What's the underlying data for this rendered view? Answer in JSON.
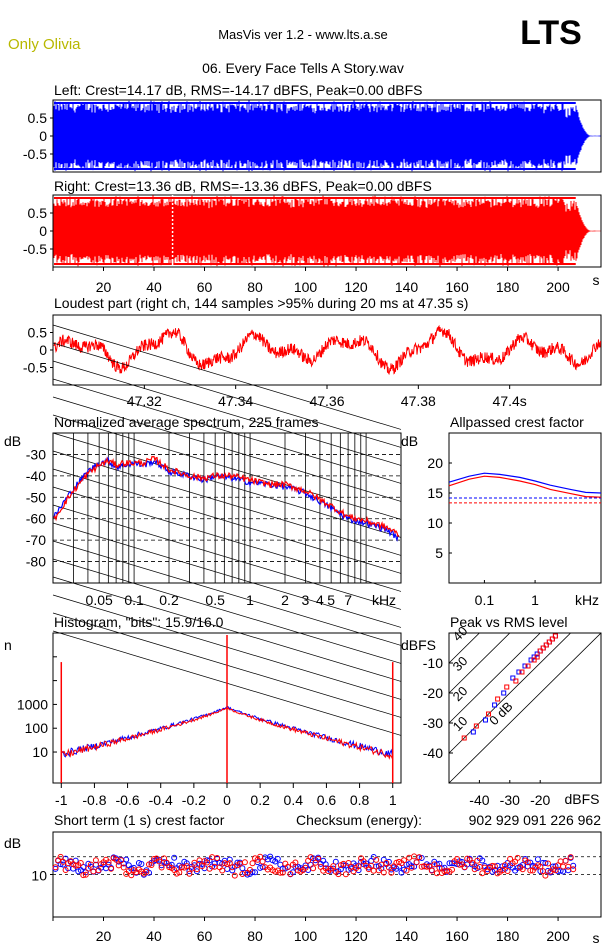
{
  "header": {
    "album": "Only Olivia",
    "app": "MasVis ver 1.2 - www.lts.a.se",
    "logo": "LTS",
    "track": "06. Every Face Tells A Story.wav"
  },
  "colors": {
    "left": "#0000ff",
    "right": "#ff0000",
    "album": "#c8c800",
    "grid": "#000000"
  },
  "chart_data": [
    {
      "id": "left",
      "type": "waveform",
      "title": "Left: Crest=14.17 dB, RMS=-14.17 dBFS, Peak=0.00 dBFS",
      "ytick_labels": [
        "0.5",
        "0",
        "-0.5"
      ],
      "yticks": [
        0.5,
        0,
        -0.5
      ],
      "ylim": [
        -1,
        1
      ],
      "xlim": [
        0,
        217
      ],
      "end_time_s": 207,
      "series_color": "#0000ff"
    },
    {
      "id": "right",
      "type": "waveform",
      "title": "Right: Crest=13.36 dB, RMS=-13.36 dBFS, Peak=0.00 dBFS",
      "ytick_labels": [
        "0.5",
        "0",
        "-0.5"
      ],
      "yticks": [
        0.5,
        0,
        -0.5
      ],
      "ylim": [
        -1,
        1
      ],
      "xlim": [
        0,
        217
      ],
      "marker_s": 47.35,
      "xticks": [
        20,
        40,
        60,
        80,
        100,
        120,
        140,
        160,
        180,
        200
      ],
      "xtick_labels": [
        "20",
        "40",
        "60",
        "80",
        "100",
        "120",
        "140",
        "160",
        "180",
        "200"
      ],
      "xunit": "s",
      "series_color": "#ff0000"
    },
    {
      "id": "loudest",
      "type": "line",
      "title": "Loudest part (right ch, 144 samples >95% during 20 ms at 47.35 s)",
      "ytick_labels": [
        "0.5",
        "0",
        "-0.5"
      ],
      "yticks": [
        0.5,
        0,
        -0.5
      ],
      "ylim": [
        -1,
        1
      ],
      "xlim": [
        47.3,
        47.42
      ],
      "xticks": [
        47.32,
        47.34,
        47.36,
        47.38,
        47.4
      ],
      "xtick_labels": [
        "47.32",
        "47.34",
        "47.36",
        "47.38",
        "47.4s"
      ],
      "series_color": "#ff0000"
    },
    {
      "id": "spectrum",
      "type": "line",
      "title": "Normalized average spectrum, 225 frames",
      "ylabel": "dB",
      "ytick_labels": [
        "-30",
        "-40",
        "-50",
        "-60",
        "-70",
        "-80"
      ],
      "yticks": [
        -30,
        -40,
        -50,
        -60,
        -70,
        -80
      ],
      "ylim": [
        -90,
        -20
      ],
      "xlim_khz": [
        0.02,
        20
      ],
      "xticks": [
        0.05,
        0.1,
        0.2,
        0.5,
        1,
        2,
        3,
        4,
        5,
        7
      ],
      "xtick_labels": [
        "0.05",
        "0.1",
        "0.2",
        "0.5",
        "1",
        "2",
        "3",
        "4",
        "5",
        "7"
      ],
      "xunit": "kHz",
      "series": [
        {
          "name": "left",
          "color": "#0000ff",
          "x": [
            0.02,
            0.025,
            0.03,
            0.04,
            0.05,
            0.06,
            0.07,
            0.08,
            0.1,
            0.12,
            0.15,
            0.2,
            0.3,
            0.4,
            0.5,
            0.7,
            1,
            1.5,
            2,
            3,
            4,
            5,
            7,
            10,
            15,
            20
          ],
          "y": [
            -60,
            -52,
            -46,
            -38,
            -34,
            -33,
            -36,
            -35,
            -34,
            -35,
            -33,
            -38,
            -40,
            -42,
            -40,
            -41,
            -43,
            -44,
            -45,
            -48,
            -52,
            -55,
            -60,
            -62,
            -65,
            -70
          ]
        },
        {
          "name": "right",
          "color": "#ff0000",
          "x": [
            0.02,
            0.025,
            0.03,
            0.04,
            0.05,
            0.06,
            0.07,
            0.08,
            0.1,
            0.12,
            0.15,
            0.2,
            0.3,
            0.4,
            0.5,
            0.7,
            1,
            1.5,
            2,
            3,
            4,
            5,
            7,
            10,
            15,
            20
          ],
          "y": [
            -61,
            -53,
            -47,
            -39,
            -35,
            -33,
            -35,
            -34,
            -34,
            -34,
            -32,
            -37,
            -40,
            -41,
            -40,
            -40,
            -42,
            -44,
            -44,
            -47,
            -51,
            -54,
            -59,
            -61,
            -64,
            -68
          ]
        }
      ]
    },
    {
      "id": "crest",
      "type": "line",
      "title": "Allpassed crest factor",
      "ylabel": "dB",
      "ytick_labels": [
        "20",
        "15",
        "10",
        "5"
      ],
      "yticks": [
        20,
        15,
        10,
        5
      ],
      "ylim": [
        0,
        25
      ],
      "xlim_khz": [
        0.02,
        20
      ],
      "xticks": [
        0.1,
        1
      ],
      "xtick_labels": [
        "0.1",
        "1"
      ],
      "xunit": "kHz",
      "ref_left_db": 14.17,
      "ref_right_db": 13.36,
      "series": [
        {
          "name": "left",
          "color": "#0000ff",
          "x": [
            0.02,
            0.05,
            0.1,
            0.2,
            0.5,
            1,
            2,
            5,
            10,
            20
          ],
          "y": [
            16.8,
            17.8,
            18.3,
            18.1,
            17.6,
            17.0,
            16.3,
            15.6,
            15.1,
            15.0
          ]
        },
        {
          "name": "right",
          "color": "#ff0000",
          "x": [
            0.02,
            0.05,
            0.1,
            0.2,
            0.5,
            1,
            2,
            5,
            10,
            20
          ],
          "y": [
            16.2,
            17.3,
            17.8,
            17.6,
            17.0,
            16.4,
            15.6,
            14.9,
            14.4,
            14.3
          ]
        }
      ]
    },
    {
      "id": "histogram",
      "type": "line",
      "title": "Histogram, \"bits\": 15.9/16.0",
      "ylabel": "n",
      "ytick_labels": [
        "1000",
        "100",
        "10"
      ],
      "yticks": [
        1000,
        100,
        10
      ],
      "ylim_log": [
        0.5,
        1000000
      ],
      "xlim": [
        -1.05,
        1.05
      ],
      "xticks": [
        -1,
        -0.8,
        -0.6,
        -0.4,
        -0.2,
        0,
        0.2,
        0.4,
        0.6,
        0.8,
        1
      ],
      "xtick_labels": [
        "-1",
        "-0.8",
        "-0.6",
        "-0.4",
        "-0.2",
        "0",
        "0.2",
        "0.4",
        "0.6",
        "0.8",
        "1"
      ],
      "center_count": 800,
      "edge_count": 8,
      "clip_count": 60000,
      "series_colors": [
        "#0000ff",
        "#ff0000"
      ]
    },
    {
      "id": "peakrms",
      "type": "scatter",
      "title": "Peak vs RMS level",
      "ylabel": "dBFS",
      "ytick_labels": [
        "-10",
        "-20",
        "-30",
        "-40"
      ],
      "yticks": [
        -10,
        -20,
        -30,
        -40
      ],
      "ylim": [
        -50,
        0
      ],
      "xlim": [
        -50,
        0
      ],
      "xticks": [
        -40,
        -30,
        -20
      ],
      "xtick_labels": [
        "-40",
        "-30",
        "-20"
      ],
      "xunit": "dBFS",
      "diag_labels": [
        "40",
        "30",
        "20",
        "10",
        "0 dB"
      ],
      "diag_offsets": [
        40,
        30,
        20,
        10,
        0
      ],
      "series": [
        {
          "name": "left",
          "color": "#0000ff",
          "x": [
            -42,
            -38,
            -35,
            -32,
            -29,
            -27,
            -25,
            -23,
            -22,
            -21,
            -20,
            -19,
            -18,
            -17,
            -16,
            -15
          ],
          "y": [
            -33,
            -29,
            -24,
            -20,
            -15,
            -13,
            -11,
            -9,
            -8,
            -7,
            -6,
            -5,
            -4,
            -3,
            -2,
            -1
          ]
        },
        {
          "name": "right",
          "color": "#ff0000",
          "x": [
            -45,
            -41,
            -37,
            -34,
            -31,
            -28,
            -26,
            -24,
            -22,
            -21,
            -20,
            -19,
            -18,
            -17,
            -16,
            -15
          ],
          "y": [
            -35,
            -31,
            -27,
            -22,
            -18,
            -16,
            -13,
            -11,
            -9,
            -8,
            -6,
            -5,
            -4,
            -3,
            -2,
            -1
          ]
        }
      ]
    },
    {
      "id": "shortterm",
      "type": "scatter",
      "title": "Short term (1 s) crest factor",
      "ylabel": "dB",
      "ytick_labels": [
        "10"
      ],
      "yticks": [
        10
      ],
      "ylim": [
        0,
        20
      ],
      "xlim": [
        0,
        217
      ],
      "xticks": [
        20,
        40,
        60,
        80,
        100,
        120,
        140,
        160,
        180,
        200
      ],
      "xtick_labels": [
        "20",
        "40",
        "60",
        "80",
        "100",
        "120",
        "140",
        "160",
        "180",
        "200"
      ],
      "xunit": "s",
      "ref_left_db": 14.17,
      "ref_right_db": 13.36,
      "mean_db": 12,
      "series_colors": [
        "#0000ff",
        "#ff0000"
      ]
    }
  ],
  "checksum": {
    "label": "Checksum (energy):",
    "value": "902 929 091 226 962"
  }
}
